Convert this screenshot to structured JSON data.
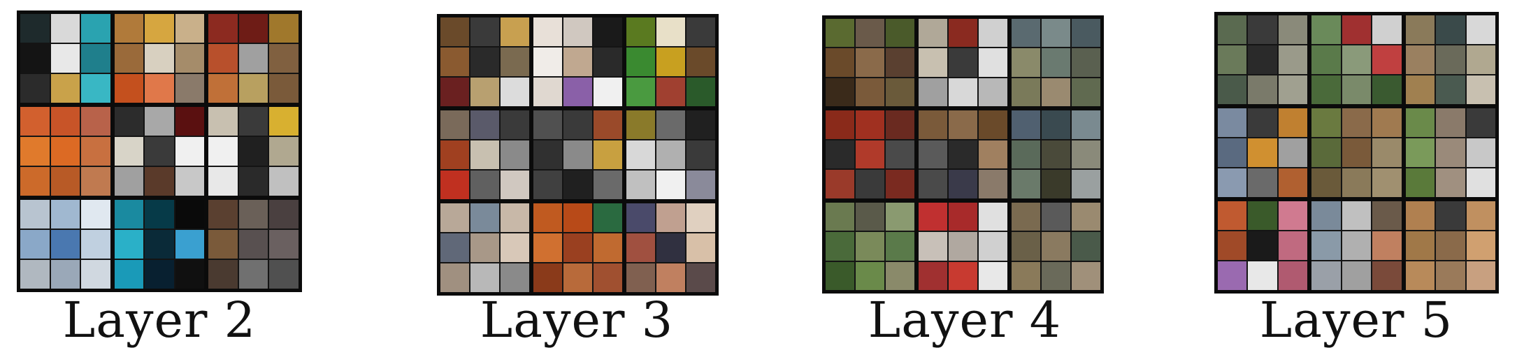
{
  "layers": [
    {
      "label": "Layer 2",
      "blocks": [
        [
          "#1e2a2c",
          "#d9d9d9",
          "#2aa3b0",
          "#141414",
          "#e8e8e8",
          "#1f7f8c",
          "#2b2b2b",
          "#c9a24a",
          "#39b7c4"
        ],
        [
          "#b07a3a",
          "#d6a640",
          "#c9b08a",
          "#9a6a3a",
          "#d8d0c0",
          "#a58c6a",
          "#c4501e",
          "#e0784a",
          "#8a7a6a"
        ],
        [
          "#8c2a20",
          "#6e1c16",
          "#a0782c",
          "#b8502c",
          "#a0a0a0",
          "#806040",
          "#c07038",
          "#b8a060",
          "#7a5a3a"
        ],
        [
          "#d2602e",
          "#c85428",
          "#b8624a",
          "#e07a2c",
          "#dc6a24",
          "#c87040",
          "#cc6a2a",
          "#b85a26",
          "#c07a50"
        ],
        [
          "#2c2c2c",
          "#a8a8a8",
          "#5a1010",
          "#d8d4c8",
          "#3a3a3a",
          "#f0f0f0",
          "#a0a0a0",
          "#5a3a2a",
          "#c8c8c8"
        ],
        [
          "#c8c0b0",
          "#3a3a3a",
          "#d8b030",
          "#f0f0f0",
          "#202020",
          "#b0a890",
          "#e8e8e8",
          "#2a2a2a",
          "#c0c0c0"
        ],
        [
          "#b8c4d0",
          "#a0b8d0",
          "#e0e8f0",
          "#8aa8c8",
          "#4a78b0",
          "#c0d0e0",
          "#b0b8c0",
          "#9aa8b8",
          "#d0d8e0"
        ],
        [
          "#1a8aa0",
          "#063a48",
          "#0a0a0a",
          "#2ab0c8",
          "#0a2a38",
          "#3aa0d0",
          "#1a9ab8",
          "#082030",
          "#101010"
        ],
        [
          "#5a4030",
          "#6a6058",
          "#4a4040",
          "#7a5a3a",
          "#585050",
          "#6a6060",
          "#4a3a30",
          "#707070",
          "#505050"
        ]
      ]
    },
    {
      "label": "Layer 3",
      "blocks": [
        [
          "#6a4a2a",
          "#3a3a3a",
          "#c8a050",
          "#8a5a30",
          "#2a2a2a",
          "#7a6a50",
          "#6a2020",
          "#b8a070",
          "#dcdcdc"
        ],
        [
          "#e8e0d8",
          "#d0c8c0",
          "#1a1a1a",
          "#f0ece8",
          "#c0a890",
          "#2a2a2a",
          "#e0d8d0",
          "#8a60a8",
          "#f0f0f0"
        ],
        [
          "#5a7a20",
          "#e8e0c8",
          "#3a3a3a",
          "#3a8a30",
          "#c8a020",
          "#6a4a2a",
          "#4a9a40",
          "#a04030",
          "#2a5a2a"
        ],
        [
          "#7a6a5a",
          "#5a5a6a",
          "#3a3a3a",
          "#a04020",
          "#c8c0b0",
          "#8a8a8a",
          "#c03020",
          "#606060",
          "#d0c8c0"
        ],
        [
          "#505050",
          "#3a3a3a",
          "#9a4a2a",
          "#303030",
          "#8a8a8a",
          "#c8a040",
          "#404040",
          "#202020",
          "#6a6a6a"
        ],
        [
          "#8a7a2a",
          "#6a6a6a",
          "#202020",
          "#d8d8d8",
          "#b0b0b0",
          "#3a3a3a",
          "#c0c0c0",
          "#f0f0f0",
          "#8a8a9a"
        ],
        [
          "#b8a898",
          "#7a8a9a",
          "#c8b8a8",
          "#606878",
          "#a89888",
          "#d8c8b8",
          "#a09080",
          "#b8b8b8",
          "#8a8a8a"
        ],
        [
          "#c05a20",
          "#b84a18",
          "#2a6a40",
          "#d07030",
          "#9a4020",
          "#c06a30",
          "#8a3a1a",
          "#b86a3a",
          "#a05030"
        ],
        [
          "#4a4a6a",
          "#c0a090",
          "#e0d0c0",
          "#a05040",
          "#303040",
          "#d8c0a8",
          "#806050",
          "#c08060",
          "#5a4a4a"
        ]
      ]
    },
    {
      "label": "Layer 4",
      "blocks": [
        [
          "#5a6a30",
          "#6a5a4a",
          "#4a5a2a",
          "#6a4a2a",
          "#8a6a4a",
          "#5a4030",
          "#3a2a1a",
          "#7a5a3a",
          "#6a5a3a"
        ],
        [
          "#b0a898",
          "#8a2a20",
          "#d0d0d0",
          "#c8c0b0",
          "#3a3a3a",
          "#e0e0e0",
          "#a0a0a0",
          "#d8d8d8",
          "#b8b8b8"
        ],
        [
          "#5a6a70",
          "#7a8a8a",
          "#4a5a60",
          "#8a8a6a",
          "#6a7a70",
          "#5a6050",
          "#7a7a5a",
          "#9a8a70",
          "#606a50"
        ],
        [
          "#8a2a1a",
          "#a03020",
          "#6a2a20",
          "#2a2a2a",
          "#b03a2a",
          "#4a4a4a",
          "#9a3a2a",
          "#3a3a3a",
          "#7a2a20"
        ],
        [
          "#7a5a3a",
          "#8a6a4a",
          "#6a4a2a",
          "#5a5a5a",
          "#2a2a2a",
          "#a08060",
          "#4a4a4a",
          "#3a3a4a",
          "#8a7a6a"
        ],
        [
          "#506070",
          "#3a4a50",
          "#7a8a90",
          "#5a6a5a",
          "#4a4a3a",
          "#8a8a7a",
          "#6a7a6a",
          "#3a3a2a",
          "#9aa0a0"
        ],
        [
          "#6a7a50",
          "#5a5a4a",
          "#8a9a70",
          "#4a6a3a",
          "#7a8a5a",
          "#5a7a4a",
          "#3a5a2a",
          "#6a8a4a",
          "#8a8a6a"
        ],
        [
          "#c03030",
          "#a82a2a",
          "#e0e0e0",
          "#c8c0b8",
          "#b0a8a0",
          "#d0d0d0",
          "#a03030",
          "#c83a30",
          "#e8e8e8"
        ],
        [
          "#7a6a50",
          "#5a5a5a",
          "#9a8a70",
          "#6a6048",
          "#8a7a60",
          "#4a5a4a",
          "#8a7a5a",
          "#6a6a5a",
          "#a0907a"
        ]
      ]
    },
    {
      "label": "Layer 5",
      "blocks": [
        [
          "#5a6a50",
          "#3a3a3a",
          "#8a8a7a",
          "#6a7a5a",
          "#2a2a2a",
          "#9a9a8a",
          "#4a5a4a",
          "#7a7a6a",
          "#a0a090"
        ],
        [
          "#6a8a5a",
          "#a03030",
          "#d0d0d0",
          "#5a7a4a",
          "#8a9a7a",
          "#c04040",
          "#4a6a3a",
          "#7a8a6a",
          "#3a5a30"
        ],
        [
          "#8a7a5a",
          "#3a4a4a",
          "#d8d8d8",
          "#9a8060",
          "#6a6a5a",
          "#b0a890",
          "#a08050",
          "#4a5a50",
          "#c8c0b0"
        ],
        [
          "#7a8aa0",
          "#3a3a3a",
          "#c08030",
          "#5a6a80",
          "#d09030",
          "#a0a0a0",
          "#8a9ab0",
          "#6a6a6a",
          "#b06030"
        ],
        [
          "#6a7a40",
          "#8a6a4a",
          "#a07a50",
          "#5a6a3a",
          "#7a5a3a",
          "#9a8a6a",
          "#6a5a3a",
          "#8a7a5a",
          "#a09070"
        ],
        [
          "#6a8a4a",
          "#8a7a6a",
          "#3a3a3a",
          "#7a9a5a",
          "#9a8a7a",
          "#c8c8c8",
          "#5a7a3a",
          "#a09080",
          "#e0e0e0"
        ],
        [
          "#c05a30",
          "#3a5a2a",
          "#d07a90",
          "#a04a28",
          "#1a1a1a",
          "#c06a80",
          "#9a6ab0",
          "#e8e8e8",
          "#b05a70"
        ],
        [
          "#7a8a9a",
          "#c0c0c0",
          "#6a5a4a",
          "#8a9aa8",
          "#b0b0b0",
          "#c08060",
          "#9aa0a8",
          "#a0a0a0",
          "#7a4a3a"
        ],
        [
          "#b08050",
          "#3a3a3a",
          "#c09060",
          "#a07848",
          "#8a6a4a",
          "#d0a070",
          "#b88a5a",
          "#9a7a5a",
          "#c8a080"
        ]
      ]
    }
  ]
}
